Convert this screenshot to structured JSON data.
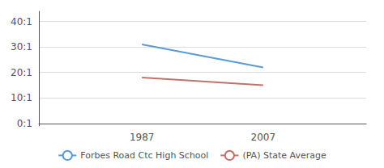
{
  "chart_data": {
    "type": "line",
    "x": [
      1987,
      2007
    ],
    "series": [
      {
        "name": "Forbes Road Ctc High School",
        "color": "#5b9bd5",
        "values": [
          31,
          22
        ]
      },
      {
        "name": "(PA) State Average",
        "color": "#c0736a",
        "values": [
          18,
          15
        ]
      }
    ],
    "xlim": [
      1970,
      2024
    ],
    "xticks": [
      1987,
      2007
    ],
    "ylim": [
      -1,
      44
    ],
    "yticks": [
      {
        "value": 0,
        "label": "0:1"
      },
      {
        "value": 10,
        "label": "10:1"
      },
      {
        "value": 20,
        "label": "20:1"
      },
      {
        "value": 30,
        "label": "30:1"
      },
      {
        "value": 40,
        "label": "40:1"
      }
    ],
    "grid": true,
    "legend": "bottom"
  }
}
